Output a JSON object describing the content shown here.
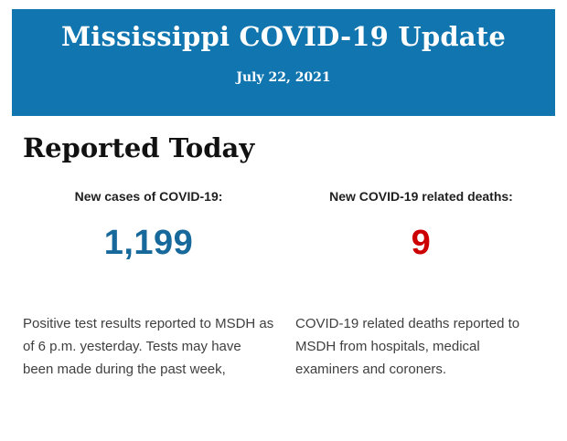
{
  "banner": {
    "title": "Mississippi COVID-19 Update",
    "date": "July 22, 2021",
    "background_color": "#1176AF",
    "text_color": "#FFFFFF"
  },
  "main": {
    "heading": "Reported Today",
    "stats": [
      {
        "label": "New cases of COVID-19:",
        "value": "1,199",
        "value_color": "#17699B",
        "description": "Positive test results reported to MSDH as of 6 p.m. yesterday. Tests may have been made during the past week,"
      },
      {
        "label": "New COVID-19 related deaths:",
        "value": "9",
        "value_color": "#CC0000",
        "description": "COVID-19 related deaths reported to MSDH from hospitals, medical examiners and coroners."
      }
    ]
  }
}
